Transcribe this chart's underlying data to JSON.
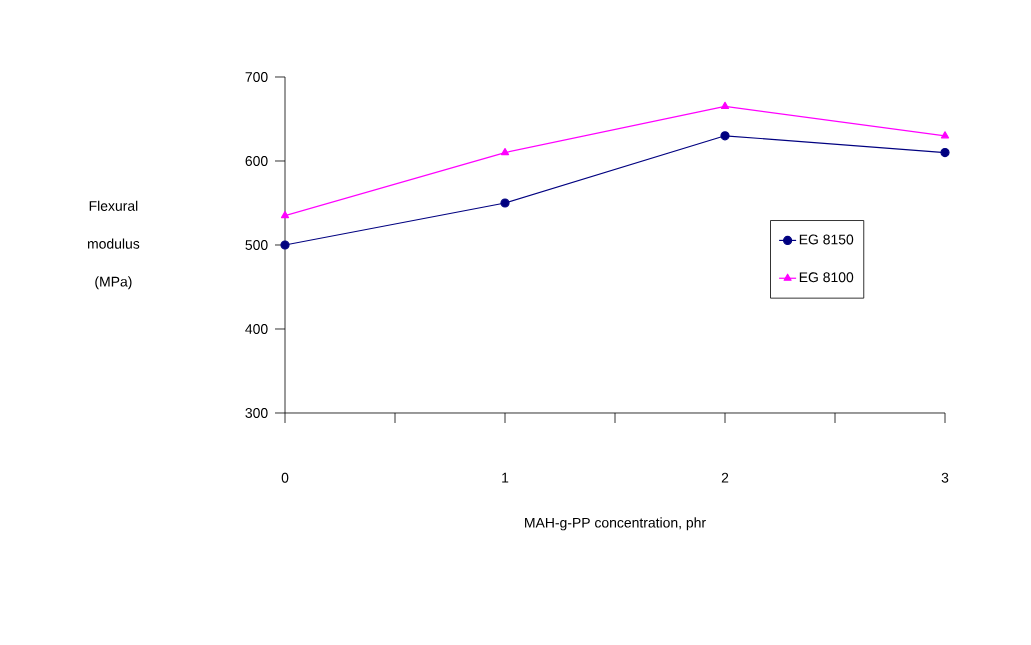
{
  "chart_data": {
    "type": "line",
    "xlabel": "MAH-g-PP concentration, phr",
    "ylabel": "Flexural modulus (MPa)",
    "x": [
      0,
      1,
      2,
      3
    ],
    "series": [
      {
        "name": "EG 8150",
        "color": "#000080",
        "marker": "circle",
        "values": [
          500,
          550,
          630,
          610
        ]
      },
      {
        "name": "EG 8100",
        "color": "#ff00ff",
        "marker": "triangle",
        "values": [
          535,
          610,
          665,
          630
        ]
      }
    ],
    "xlim": [
      0,
      3
    ],
    "ylim": [
      300,
      700
    ],
    "xticks": [
      0,
      {
        "value": 0.5,
        "label": null
      },
      1,
      {
        "value": 1.5,
        "label": null
      },
      2,
      {
        "value": 2.5,
        "label": null
      },
      3
    ],
    "yticks": [
      300,
      400,
      500,
      600,
      700
    ],
    "grid": false,
    "legend": "right",
    "line_style": "solid"
  }
}
